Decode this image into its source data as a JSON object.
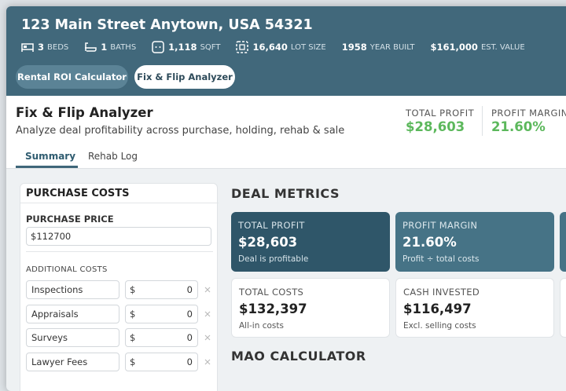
{
  "header": {
    "address": "123 Main Street Anytown, USA 54321",
    "stats": [
      {
        "value": "3",
        "label": "BEDS"
      },
      {
        "value": "1",
        "label": "BATHS"
      },
      {
        "value": "1,118",
        "label": "SQFT"
      },
      {
        "value": "16,640",
        "label": "LOT SIZE"
      },
      {
        "value": "1958",
        "label": "YEAR BUILT"
      },
      {
        "value": "$161,000",
        "label": "EST. VALUE"
      }
    ],
    "buttons": [
      "Rental ROI Calculator",
      "Fix & Flip Analyzer"
    ]
  },
  "page": {
    "title": "Fix & Flip Analyzer",
    "subtitle": "Analyze deal profitability across purchase, holding, rehab & sale",
    "summary": [
      {
        "label": "TOTAL PROFIT",
        "value": "$28,603"
      },
      {
        "label": "PROFIT MARGIN",
        "value": "21.60%"
      }
    ],
    "tabs": [
      "Summary",
      "Rehab Log"
    ]
  },
  "purchase_costs": {
    "title": "PURCHASE COSTS",
    "price_label": "PURCHASE PRICE",
    "price_value": "$112700",
    "additional_label": "ADDITIONAL COSTS",
    "rows": [
      {
        "name": "Inspections",
        "currency": "$",
        "value": "0"
      },
      {
        "name": "Appraisals",
        "currency": "$",
        "value": "0"
      },
      {
        "name": "Surveys",
        "currency": "$",
        "value": "0"
      },
      {
        "name": "Lawyer Fees",
        "currency": "$",
        "value": "0"
      }
    ]
  },
  "deal_metrics": {
    "title": "DEAL METRICS",
    "cards": [
      {
        "label": "TOTAL PROFIT",
        "value": "$28,603",
        "note": "Deal is profitable"
      },
      {
        "label": "PROFIT MARGIN",
        "value": "21.60%",
        "note": "Profit ÷ total costs"
      },
      {
        "label": "TOTAL COSTS",
        "value": "$132,397",
        "note": "All-in costs"
      },
      {
        "label": "CASH INVESTED",
        "value": "$116,497",
        "note": "Excl. selling costs"
      }
    ]
  },
  "mao": {
    "title": "MAO CALCULATOR"
  }
}
